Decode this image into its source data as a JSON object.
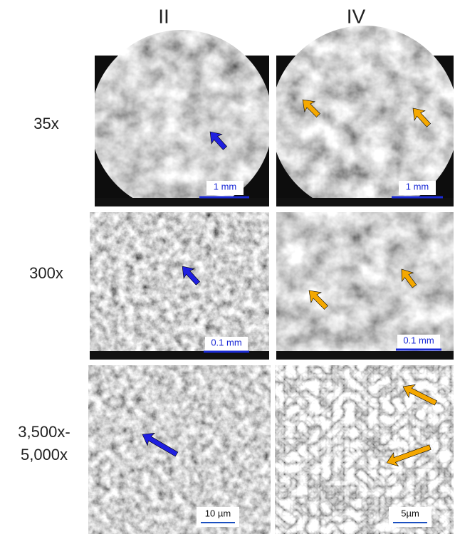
{
  "columns": [
    "II",
    "IV"
  ],
  "rows": [
    {
      "label": [
        "35x"
      ],
      "scale_bars": [
        "1 mm",
        "1 mm"
      ]
    },
    {
      "label": [
        "300x"
      ],
      "scale_bars": [
        "0.1 mm",
        "0.1 mm"
      ]
    },
    {
      "label": [
        "3,500x-",
        "5,000x"
      ],
      "scale_bars": [
        "10 µm",
        "5µm"
      ]
    }
  ]
}
